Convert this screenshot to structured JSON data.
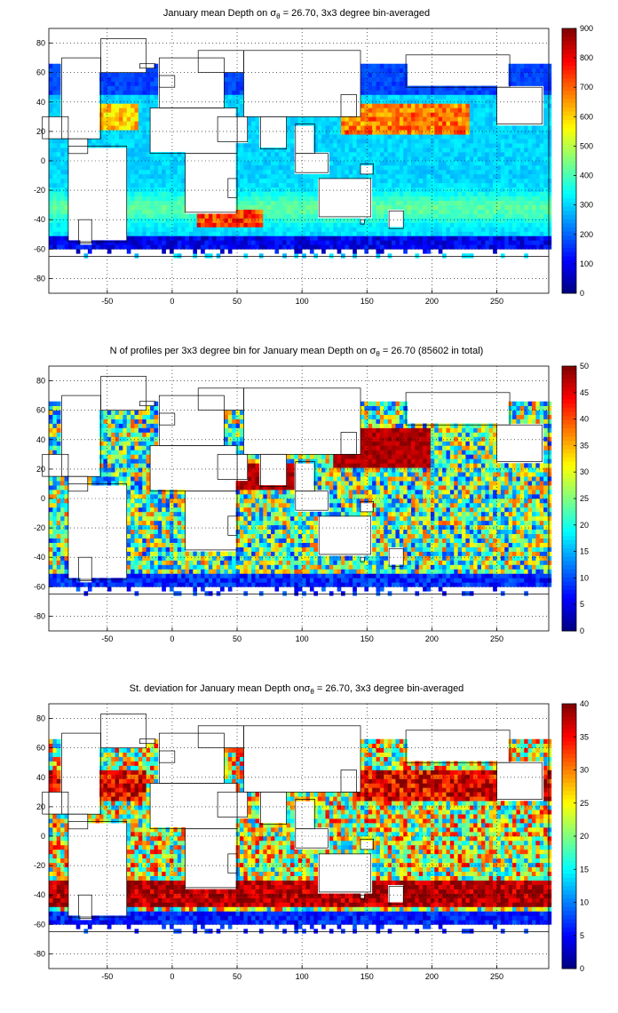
{
  "chart_data": [
    {
      "type": "heatmap",
      "title": "January mean Depth on σθ = 26.70, 3x3 degree bin-averaged",
      "title_parts": {
        "before": "January mean Depth on σ",
        "sub": "θ",
        "after": " = 26.70, 3x3 degree bin-averaged"
      },
      "xlim": [
        -95,
        290
      ],
      "ylim": [
        -90,
        90
      ],
      "xticks": [
        -50,
        0,
        50,
        100,
        150,
        200,
        250
      ],
      "yticks": [
        -80,
        -60,
        -40,
        -20,
        0,
        20,
        40,
        60,
        80
      ],
      "grid": true,
      "colorbar": {
        "min": 0,
        "max": 900,
        "ticks": [
          0,
          100,
          200,
          300,
          400,
          500,
          600,
          700,
          800,
          900
        ]
      },
      "colormap": "jet",
      "field": "depth"
    },
    {
      "type": "heatmap",
      "title": "N of profiles per 3x3 degree bin for January mean Depth on σθ = 26.70 (85602 in total)",
      "title_parts": {
        "before": "N of profiles per 3x3 degree bin for January mean Depth on σ",
        "sub": "θ",
        "after": " = 26.70 (85602 in total)"
      },
      "xlim": [
        -95,
        290
      ],
      "ylim": [
        -90,
        90
      ],
      "xticks": [
        -50,
        0,
        50,
        100,
        150,
        200,
        250
      ],
      "yticks": [
        -80,
        -60,
        -40,
        -20,
        0,
        20,
        40,
        60,
        80
      ],
      "grid": true,
      "colorbar": {
        "min": 0,
        "max": 50,
        "ticks": [
          0,
          5,
          10,
          15,
          20,
          25,
          30,
          35,
          40,
          45,
          50
        ]
      },
      "colormap": "jet",
      "field": "count"
    },
    {
      "type": "heatmap",
      "title": "St. deviation for January mean Depth onσθ = 26.70, 3x3 degree bin-averaged",
      "title_parts": {
        "before": "St. deviation for January mean Depth onσ",
        "sub": "θ",
        "after": " = 26.70, 3x3 degree bin-averaged"
      },
      "xlim": [
        -95,
        290
      ],
      "ylim": [
        -90,
        90
      ],
      "xticks": [
        -50,
        0,
        50,
        100,
        150,
        200,
        250
      ],
      "yticks": [
        -80,
        -60,
        -40,
        -20,
        0,
        20,
        40,
        60,
        80
      ],
      "grid": true,
      "colorbar": {
        "min": 0,
        "max": 40,
        "ticks": [
          0,
          5,
          10,
          15,
          20,
          25,
          30,
          35,
          40
        ]
      },
      "colormap": "jet",
      "field": "std"
    }
  ]
}
